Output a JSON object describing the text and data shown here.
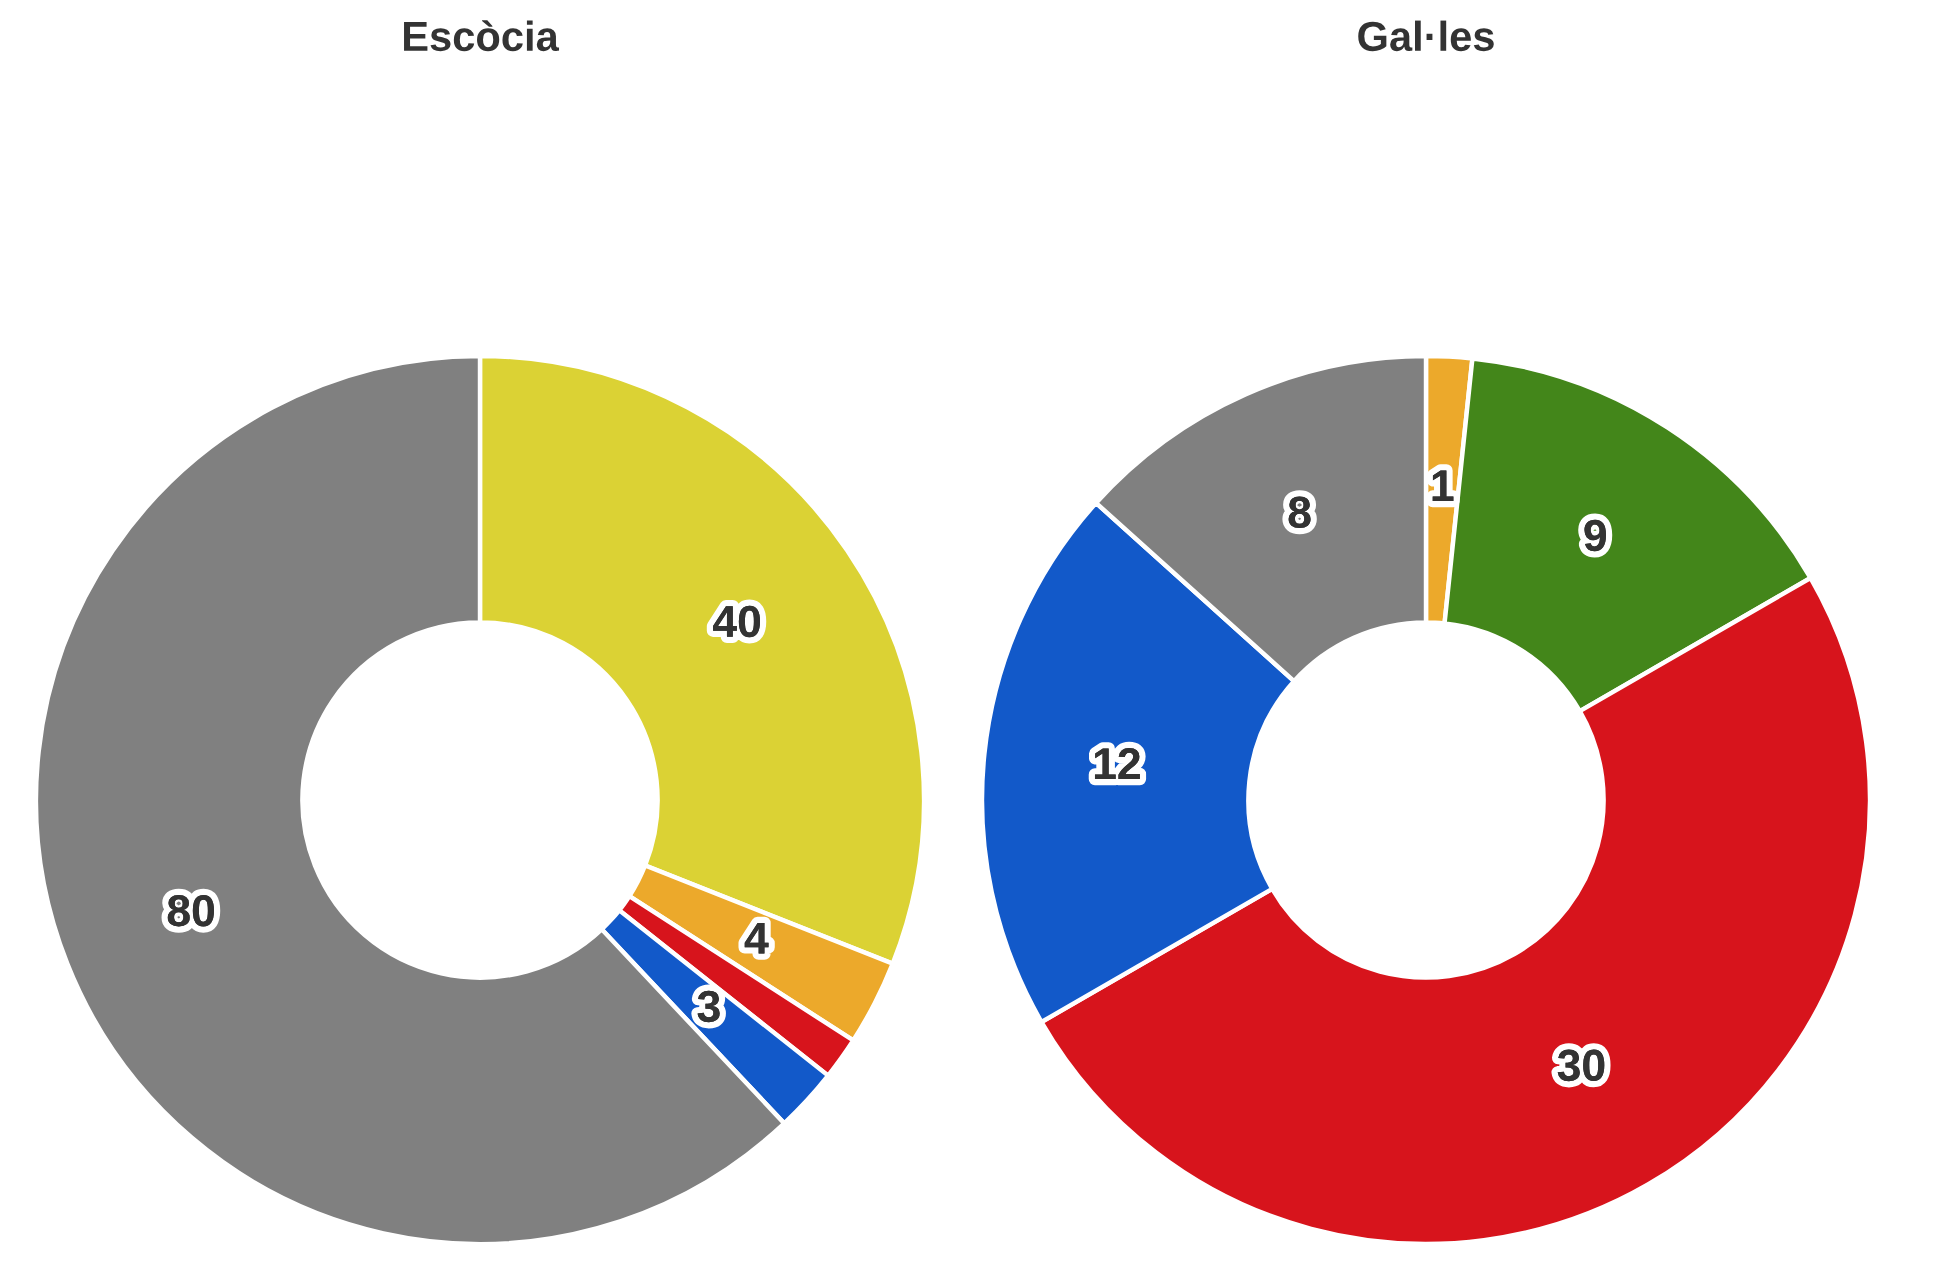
{
  "chart_data": [
    {
      "type": "donut",
      "title": "Escòcia",
      "categories": [
        null,
        null,
        null,
        null,
        null
      ],
      "values": [
        40,
        4,
        2,
        3,
        80
      ],
      "colors": [
        "#dbd234",
        "#eca92b",
        "#d7141c",
        "#1259c9",
        "#808080"
      ],
      "value_labels": [
        "40",
        "4",
        null,
        "3",
        "80"
      ]
    },
    {
      "type": "donut",
      "title": "Gal·les",
      "categories": [
        null,
        null,
        null,
        null,
        null
      ],
      "values": [
        1,
        9,
        30,
        12,
        8
      ],
      "colors": [
        "#eca92b",
        "#43861a",
        "#d7141c",
        "#1259c9",
        "#808080"
      ],
      "data_labels": true
    }
  ]
}
